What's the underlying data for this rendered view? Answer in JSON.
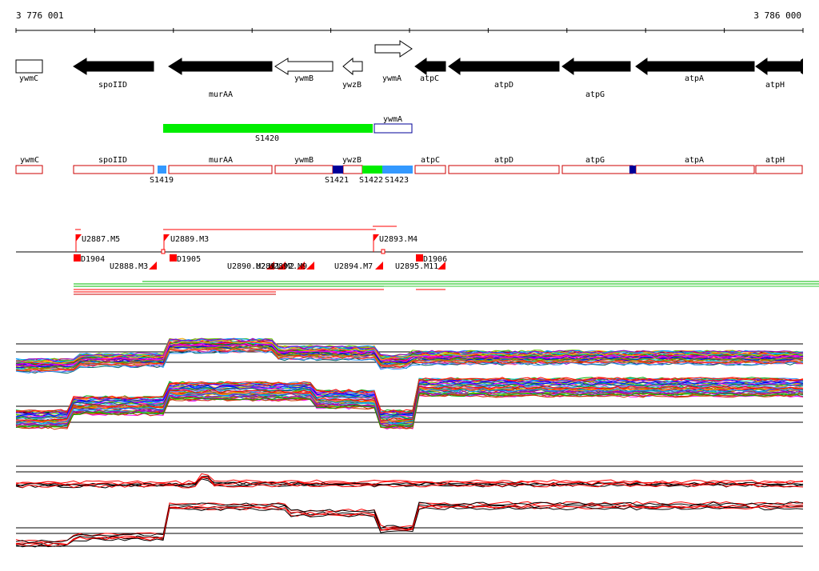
{
  "coordinates": {
    "start": "3 776 001",
    "end": "3 786 000"
  },
  "genes": [
    {
      "name": "ywmC",
      "strand": "-",
      "filled": false
    },
    {
      "name": "spoIID",
      "strand": "-",
      "filled": true
    },
    {
      "name": "murAA",
      "strand": "-",
      "filled": true
    },
    {
      "name": "ywmB",
      "strand": "-",
      "filled": false
    },
    {
      "name": "ywzB",
      "strand": "-",
      "filled": false
    },
    {
      "name": "ywmA",
      "strand": "+",
      "filled": false
    },
    {
      "name": "atpC",
      "strand": "-",
      "filled": true
    },
    {
      "name": "atpD",
      "strand": "-",
      "filled": true
    },
    {
      "name": "atpG",
      "strand": "-",
      "filled": true
    },
    {
      "name": "atpA",
      "strand": "-",
      "filled": true
    },
    {
      "name": "atpH",
      "strand": "-",
      "filled": true
    }
  ],
  "segments": [
    {
      "name": "S1420",
      "color": "#00ee00"
    },
    {
      "name": "ywmA",
      "color": "#ffffff"
    }
  ],
  "segment_track": {
    "boxes": [
      "ywmC",
      "spoIID",
      "murAA",
      "ywmB",
      "ywzB",
      "atpC",
      "atpD",
      "atpG",
      "atpA",
      "atpH"
    ],
    "markers": [
      {
        "label": "S1419",
        "color": "#3399ff"
      },
      {
        "label": "S1421",
        "color": "#000099"
      },
      {
        "label": "S1422",
        "color": "#00ee00"
      },
      {
        "label": "S1423",
        "color": "#3399ff"
      },
      {
        "label": "",
        "color": "#000099"
      }
    ]
  },
  "upstream_features": [
    "U2887.M5",
    "U2889.M3",
    "U2893.M4"
  ],
  "downstream_features": [
    "D1904",
    "U2888.M3",
    "D1905",
    "U2890.M2",
    "U2891.M2",
    "U2892.M9",
    "U2894.M7",
    "U2895.M11",
    "D1906"
  ],
  "colors": {
    "feature": "#ff0000",
    "filled_gene": "#000000",
    "track_line": "#000000"
  }
}
